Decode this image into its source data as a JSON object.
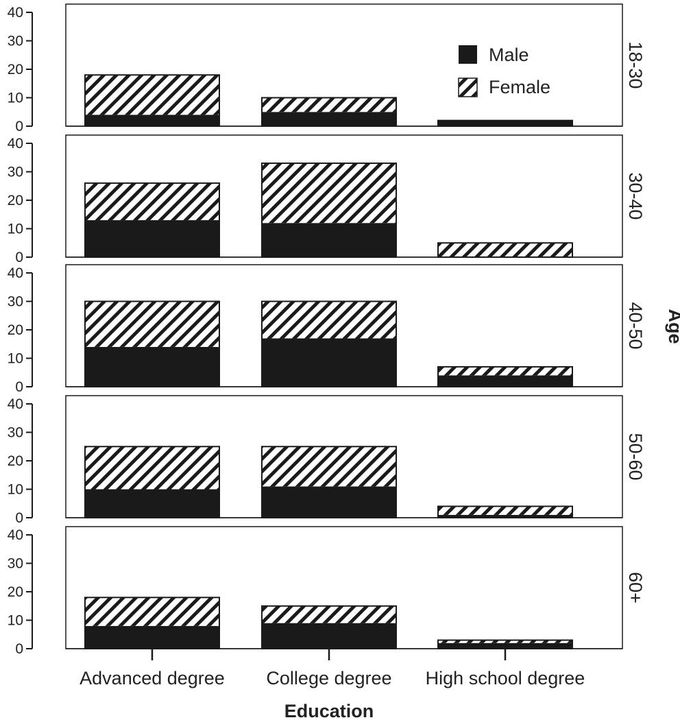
{
  "chart_data": {
    "type": "bar",
    "stacked": true,
    "xlabel": "Education",
    "facet_label": "Age",
    "categories": [
      "Advanced degree",
      "College degree",
      "High school degree"
    ],
    "series_names": [
      "Male",
      "Female"
    ],
    "ylim": [
      0,
      40
    ],
    "yticks": [
      0,
      10,
      20,
      30,
      40
    ],
    "legend": {
      "placement": "top-right of first panel",
      "entries": [
        {
          "name": "Male",
          "pattern": "solid"
        },
        {
          "name": "Female",
          "pattern": "hatched"
        }
      ]
    },
    "grid": false,
    "panels": [
      {
        "facet": "18-30",
        "series": [
          {
            "name": "Male",
            "values": [
              4,
              5,
              2
            ]
          },
          {
            "name": "Female",
            "values": [
              14,
              5,
              0
            ]
          }
        ]
      },
      {
        "facet": "30-40",
        "series": [
          {
            "name": "Male",
            "values": [
              13,
              12,
              0
            ]
          },
          {
            "name": "Female",
            "values": [
              13,
              21,
              5
            ]
          }
        ]
      },
      {
        "facet": "40-50",
        "series": [
          {
            "name": "Male",
            "values": [
              14,
              17,
              4
            ]
          },
          {
            "name": "Female",
            "values": [
              16,
              13,
              3
            ]
          }
        ]
      },
      {
        "facet": "50-60",
        "series": [
          {
            "name": "Male",
            "values": [
              10,
              11,
              1
            ]
          },
          {
            "name": "Female",
            "values": [
              15,
              14,
              3
            ]
          }
        ]
      },
      {
        "facet": "60+",
        "series": [
          {
            "name": "Male",
            "values": [
              8,
              9,
              2
            ]
          },
          {
            "name": "Female",
            "values": [
              10,
              6,
              1
            ]
          }
        ]
      }
    ],
    "colors": {
      "male": "#1a1a1a",
      "female_hatch": "#1a1a1a",
      "background": "#ffffff",
      "frame": "#1a1a1a"
    }
  }
}
